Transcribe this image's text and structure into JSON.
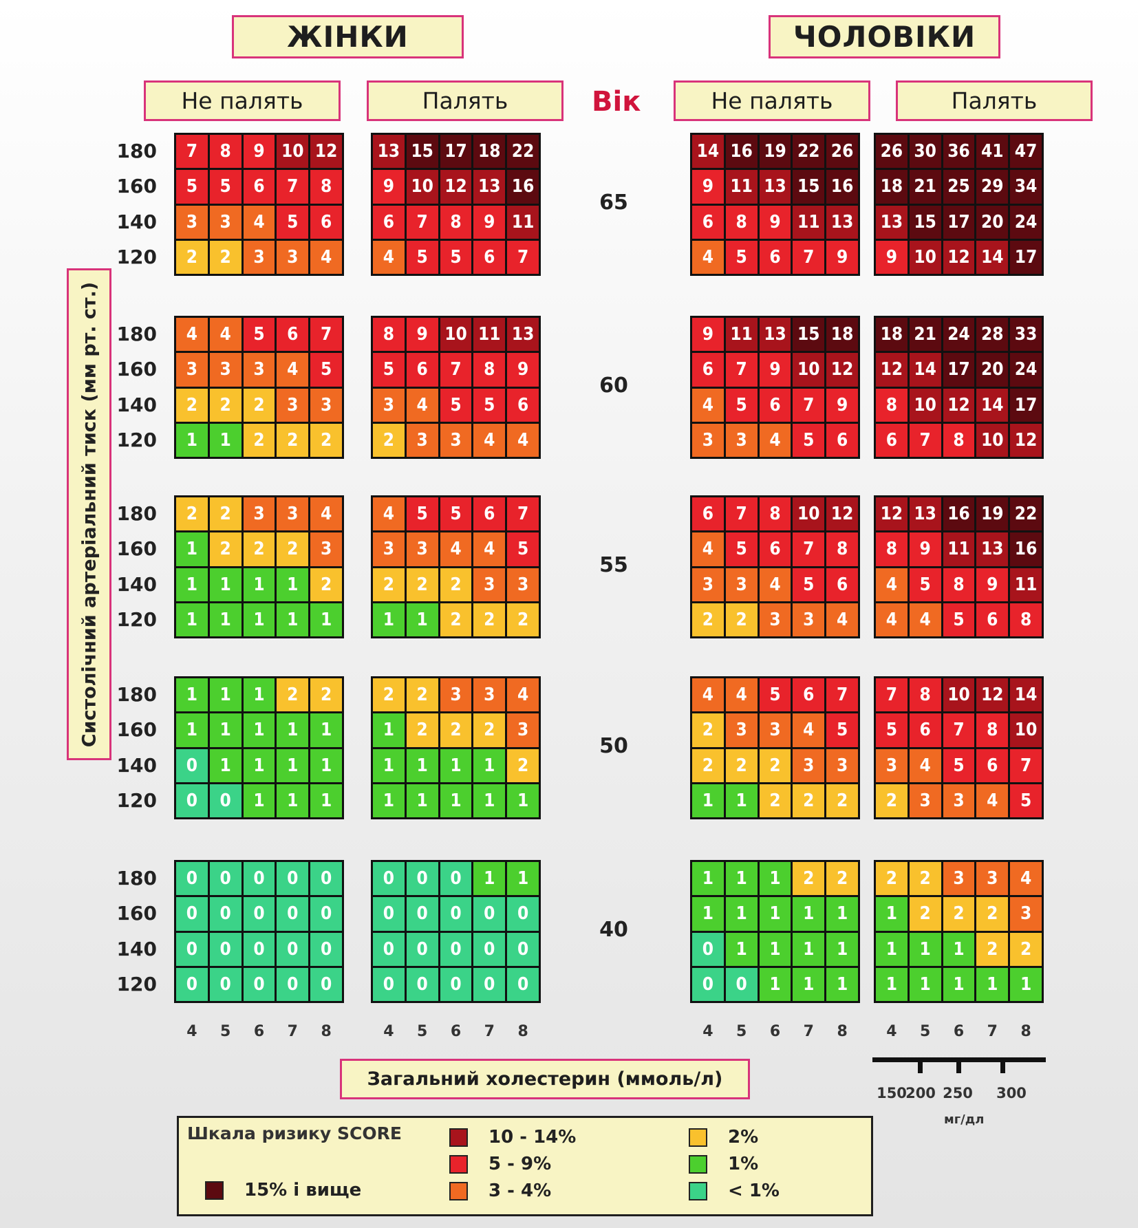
{
  "header": {
    "women": "ЖІНКИ",
    "men": "ЧОЛОВІКИ",
    "non_smoker": "Не палять",
    "smoker": "Палять",
    "age": "Вік"
  },
  "y_axis_label": "Систолічний артеріальний тиск (мм рт. ст.)",
  "x_axis_label": "Загальний холестерин (ммоль/л)",
  "mgdl": {
    "ticks": [
      "150",
      "200",
      "250",
      "300"
    ],
    "unit": "мг/дл"
  },
  "legend": {
    "title": "Шкала ризику SCORE",
    "items": [
      {
        "label": "15% і вище",
        "color": "#5c0a10"
      },
      {
        "label": "10 - 14%",
        "color": "#a8141c"
      },
      {
        "label": "5 - 9%",
        "color": "#e8232b"
      },
      {
        "label": "3 - 4%",
        "color": "#f06a22"
      },
      {
        "label": "2%",
        "color": "#f9c12d"
      },
      {
        "label": "1%",
        "color": "#4ccf2e"
      },
      {
        "label": "< 1%",
        "color": "#3bd388"
      }
    ]
  },
  "chart_data": {
    "type": "heatmap",
    "title": "Шкала ризику SCORE",
    "xlabel": "Загальний холестерин (ммоль/л)",
    "ylabel": "Систолічний артеріальний тиск (мм рт. ст.)",
    "cholesterol": [
      "4",
      "5",
      "6",
      "7",
      "8"
    ],
    "sbp": [
      "180",
      "160",
      "140",
      "120"
    ],
    "ages": [
      "65",
      "60",
      "55",
      "50",
      "40"
    ],
    "groups": [
      "women_nonsmoker",
      "women_smoker",
      "men_nonsmoker",
      "men_smoker"
    ],
    "values": {
      "65": {
        "women_nonsmoker": [
          [
            7,
            8,
            9,
            10,
            12
          ],
          [
            5,
            5,
            6,
            7,
            8
          ],
          [
            3,
            3,
            4,
            5,
            6
          ],
          [
            2,
            2,
            3,
            3,
            4
          ]
        ],
        "women_smoker": [
          [
            13,
            15,
            17,
            18,
            22
          ],
          [
            9,
            10,
            12,
            13,
            16
          ],
          [
            6,
            7,
            8,
            9,
            11
          ],
          [
            4,
            5,
            5,
            6,
            7
          ]
        ],
        "men_nonsmoker": [
          [
            14,
            16,
            19,
            22,
            26
          ],
          [
            9,
            11,
            13,
            15,
            16
          ],
          [
            6,
            8,
            9,
            11,
            13
          ],
          [
            4,
            5,
            6,
            7,
            9
          ]
        ],
        "men_smoker": [
          [
            26,
            30,
            36,
            41,
            47
          ],
          [
            18,
            21,
            25,
            29,
            34
          ],
          [
            13,
            15,
            17,
            20,
            24
          ],
          [
            9,
            10,
            12,
            14,
            17
          ]
        ]
      },
      "60": {
        "women_nonsmoker": [
          [
            4,
            4,
            5,
            6,
            7
          ],
          [
            3,
            3,
            3,
            4,
            5
          ],
          [
            2,
            2,
            2,
            3,
            3
          ],
          [
            1,
            1,
            2,
            2,
            2
          ]
        ],
        "women_smoker": [
          [
            8,
            9,
            10,
            11,
            13
          ],
          [
            5,
            6,
            7,
            8,
            9
          ],
          [
            3,
            4,
            5,
            5,
            6
          ],
          [
            2,
            3,
            3,
            4,
            4
          ]
        ],
        "men_nonsmoker": [
          [
            9,
            11,
            13,
            15,
            18
          ],
          [
            6,
            7,
            9,
            10,
            12
          ],
          [
            4,
            5,
            6,
            7,
            9
          ],
          [
            3,
            3,
            4,
            5,
            6
          ]
        ],
        "men_smoker": [
          [
            18,
            21,
            24,
            28,
            33
          ],
          [
            12,
            14,
            17,
            20,
            24
          ],
          [
            8,
            10,
            12,
            14,
            17
          ],
          [
            6,
            7,
            8,
            10,
            12
          ]
        ]
      },
      "55": {
        "women_nonsmoker": [
          [
            2,
            2,
            3,
            3,
            4
          ],
          [
            1,
            2,
            2,
            2,
            3
          ],
          [
            1,
            1,
            1,
            1,
            2
          ],
          [
            1,
            1,
            1,
            1,
            1
          ]
        ],
        "women_smoker": [
          [
            4,
            5,
            5,
            6,
            7
          ],
          [
            3,
            3,
            4,
            4,
            5
          ],
          [
            2,
            2,
            2,
            3,
            3
          ],
          [
            1,
            1,
            2,
            2,
            2
          ]
        ],
        "men_nonsmoker": [
          [
            6,
            7,
            8,
            10,
            12
          ],
          [
            4,
            5,
            6,
            7,
            8
          ],
          [
            3,
            3,
            4,
            5,
            6
          ],
          [
            2,
            2,
            3,
            3,
            4
          ]
        ],
        "men_smoker": [
          [
            12,
            13,
            16,
            19,
            22
          ],
          [
            8,
            9,
            11,
            13,
            16
          ],
          [
            4,
            5,
            8,
            9,
            11
          ],
          [
            4,
            4,
            5,
            6,
            8
          ]
        ]
      },
      "50": {
        "women_nonsmoker": [
          [
            1,
            1,
            1,
            2,
            2
          ],
          [
            1,
            1,
            1,
            1,
            1
          ],
          [
            0,
            1,
            1,
            1,
            1
          ],
          [
            0,
            0,
            1,
            1,
            1
          ]
        ],
        "women_smoker": [
          [
            2,
            2,
            3,
            3,
            4
          ],
          [
            1,
            2,
            2,
            2,
            3
          ],
          [
            1,
            1,
            1,
            1,
            2
          ],
          [
            1,
            1,
            1,
            1,
            1
          ]
        ],
        "men_nonsmoker": [
          [
            4,
            4,
            5,
            6,
            7
          ],
          [
            2,
            3,
            3,
            4,
            5
          ],
          [
            2,
            2,
            2,
            3,
            3
          ],
          [
            1,
            1,
            2,
            2,
            2
          ]
        ],
        "men_smoker": [
          [
            7,
            8,
            10,
            12,
            14
          ],
          [
            5,
            6,
            7,
            8,
            10
          ],
          [
            3,
            4,
            5,
            6,
            7
          ],
          [
            2,
            3,
            3,
            4,
            5
          ]
        ]
      },
      "40": {
        "women_nonsmoker": [
          [
            0,
            0,
            0,
            0,
            0
          ],
          [
            0,
            0,
            0,
            0,
            0
          ],
          [
            0,
            0,
            0,
            0,
            0
          ],
          [
            0,
            0,
            0,
            0,
            0
          ]
        ],
        "women_smoker": [
          [
            0,
            0,
            0,
            1,
            1
          ],
          [
            0,
            0,
            0,
            0,
            0
          ],
          [
            0,
            0,
            0,
            0,
            0
          ],
          [
            0,
            0,
            0,
            0,
            0
          ]
        ],
        "men_nonsmoker": [
          [
            1,
            1,
            1,
            2,
            2
          ],
          [
            1,
            1,
            1,
            1,
            1
          ],
          [
            0,
            1,
            1,
            1,
            1
          ],
          [
            0,
            0,
            1,
            1,
            1
          ]
        ],
        "men_smoker": [
          [
            2,
            2,
            3,
            3,
            4
          ],
          [
            1,
            2,
            2,
            2,
            3
          ],
          [
            1,
            1,
            1,
            2,
            2
          ],
          [
            1,
            1,
            1,
            1,
            1
          ]
        ]
      }
    }
  }
}
